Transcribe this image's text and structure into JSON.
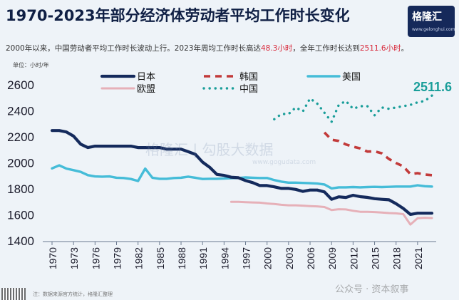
{
  "header": {
    "title": "1970-2023年部分经济体劳动者平均工作时长变化",
    "subtitle_pre": "2000年以来，中国劳动者平均工作时长波动上行。2023年周均工作时长高达",
    "subtitle_hl1": "48.3小时",
    "subtitle_mid": "，全年工作时长达到",
    "subtitle_hl2": "2511.6小时",
    "subtitle_post": "。",
    "unit": "单位：小时/年"
  },
  "logo": {
    "text": "格隆汇",
    "url": "www.gelonghui.com"
  },
  "watermark": {
    "text": "格隆汇 | 勾股大数据",
    "url": "www.gogudata.com"
  },
  "footer_watermark": "公众号 · 资本叙事",
  "source": "注：数据来源官方统计，格隆汇整理",
  "colors": {
    "japan": "#142a5c",
    "korea": "#c23a3a",
    "usa": "#45bcd8",
    "china": "#1a9e9a",
    "eu": "#e6b0b8",
    "annot": "#1a9e9a"
  },
  "chart_data": {
    "type": "line",
    "title": "1970-2023年部分经济体劳动者平均工作时长变化",
    "ylabel": "单位：小时/年",
    "ylim": [
      1400,
      2600
    ],
    "xlim": [
      1970,
      2023
    ],
    "yticks": [
      1400,
      1600,
      1800,
      2000,
      2200,
      2400,
      2600
    ],
    "xticks": [
      1970,
      1973,
      1976,
      1979,
      1982,
      1985,
      1988,
      1991,
      1994,
      1997,
      2000,
      2003,
      2006,
      2009,
      2012,
      2015,
      2018,
      2021
    ],
    "grid": false,
    "legend": "top",
    "annotations": [
      {
        "x": 2023,
        "y": 2511.6,
        "text": "2511.6"
      }
    ],
    "series": [
      {
        "key": "japan",
        "name": "日本",
        "style": "solid",
        "x": [
          1970,
          1971,
          1972,
          1973,
          1974,
          1975,
          1976,
          1977,
          1978,
          1979,
          1980,
          1981,
          1982,
          1983,
          1984,
          1985,
          1986,
          1987,
          1988,
          1989,
          1990,
          1991,
          1992,
          1993,
          1994,
          1995,
          1996,
          1997,
          1998,
          1999,
          2000,
          2001,
          2002,
          2003,
          2004,
          2005,
          2006,
          2007,
          2008,
          2009,
          2010,
          2011,
          2012,
          2013,
          2014,
          2015,
          2016,
          2017,
          2018,
          2019,
          2020,
          2021,
          2022,
          2023
        ],
        "y": [
          2243,
          2243,
          2232,
          2200,
          2138,
          2112,
          2123,
          2123,
          2123,
          2123,
          2123,
          2123,
          2112,
          2112,
          2112,
          2112,
          2100,
          2100,
          2100,
          2080,
          2060,
          2000,
          1960,
          1905,
          1898,
          1884,
          1880,
          1858,
          1842,
          1820,
          1820,
          1810,
          1798,
          1798,
          1790,
          1775,
          1785,
          1785,
          1771,
          1714,
          1733,
          1728,
          1745,
          1734,
          1729,
          1719,
          1714,
          1710,
          1680,
          1644,
          1598,
          1607,
          1607,
          1607
        ]
      },
      {
        "key": "korea",
        "name": "韩国",
        "style": "dashed",
        "x": [
          2008,
          2009,
          2010,
          2011,
          2012,
          2013,
          2014,
          2015,
          2016,
          2017,
          2018,
          2019,
          2020,
          2021,
          2022,
          2023
        ],
        "y": [
          2228,
          2172,
          2163,
          2136,
          2119,
          2106,
          2081,
          2083,
          2068,
          2024,
          1993,
          1967,
          1908,
          1915,
          1904,
          1900
        ]
      },
      {
        "key": "usa",
        "name": "美国",
        "style": "solid",
        "x": [
          1970,
          1971,
          1972,
          1973,
          1974,
          1975,
          1976,
          1977,
          1978,
          1979,
          1980,
          1981,
          1982,
          1983,
          1984,
          1985,
          1986,
          1987,
          1988,
          1989,
          1990,
          1991,
          1992,
          1993,
          1994,
          1995,
          1996,
          1997,
          1998,
          1999,
          2000,
          2001,
          2002,
          2003,
          2004,
          2005,
          2006,
          2007,
          2008,
          2009,
          2010,
          2011,
          2012,
          2013,
          2014,
          2015,
          2016,
          2017,
          2018,
          2019,
          2020,
          2021,
          2022,
          2023
        ],
        "y": [
          1952,
          1975,
          1950,
          1938,
          1925,
          1900,
          1890,
          1888,
          1890,
          1880,
          1878,
          1870,
          1855,
          1950,
          1880,
          1872,
          1872,
          1878,
          1880,
          1888,
          1880,
          1870,
          1872,
          1872,
          1874,
          1876,
          1878,
          1882,
          1880,
          1878,
          1878,
          1862,
          1850,
          1842,
          1842,
          1840,
          1838,
          1835,
          1828,
          1798,
          1806,
          1806,
          1808,
          1806,
          1808,
          1810,
          1808,
          1810,
          1812,
          1812,
          1812,
          1822,
          1815,
          1812
        ]
      },
      {
        "key": "china",
        "name": "中国",
        "style": "dotted",
        "x": [
          2001,
          2002,
          2003,
          2004,
          2005,
          2006,
          2007,
          2008,
          2009,
          2010,
          2011,
          2012,
          2013,
          2014,
          2015,
          2016,
          2017,
          2018,
          2019,
          2020,
          2021,
          2022,
          2023
        ],
        "y": [
          2330,
          2370,
          2370,
          2420,
          2390,
          2490,
          2450,
          2380,
          2310,
          2440,
          2470,
          2410,
          2430,
          2430,
          2360,
          2420,
          2410,
          2420,
          2430,
          2440,
          2460,
          2470,
          2511.6
        ]
      },
      {
        "key": "eu",
        "name": "欧盟",
        "style": "solid",
        "x": [
          1995,
          1996,
          1997,
          1998,
          1999,
          2000,
          2001,
          2002,
          2003,
          2004,
          2005,
          2006,
          2007,
          2008,
          2009,
          2010,
          2011,
          2012,
          2013,
          2014,
          2015,
          2016,
          2017,
          2018,
          2019,
          2020,
          2021,
          2022,
          2023
        ],
        "y": [
          1695,
          1695,
          1692,
          1690,
          1688,
          1682,
          1678,
          1672,
          1668,
          1668,
          1665,
          1662,
          1660,
          1655,
          1632,
          1638,
          1636,
          1626,
          1618,
          1618,
          1616,
          1612,
          1608,
          1606,
          1600,
          1520,
          1568,
          1572,
          1570
        ]
      }
    ]
  }
}
